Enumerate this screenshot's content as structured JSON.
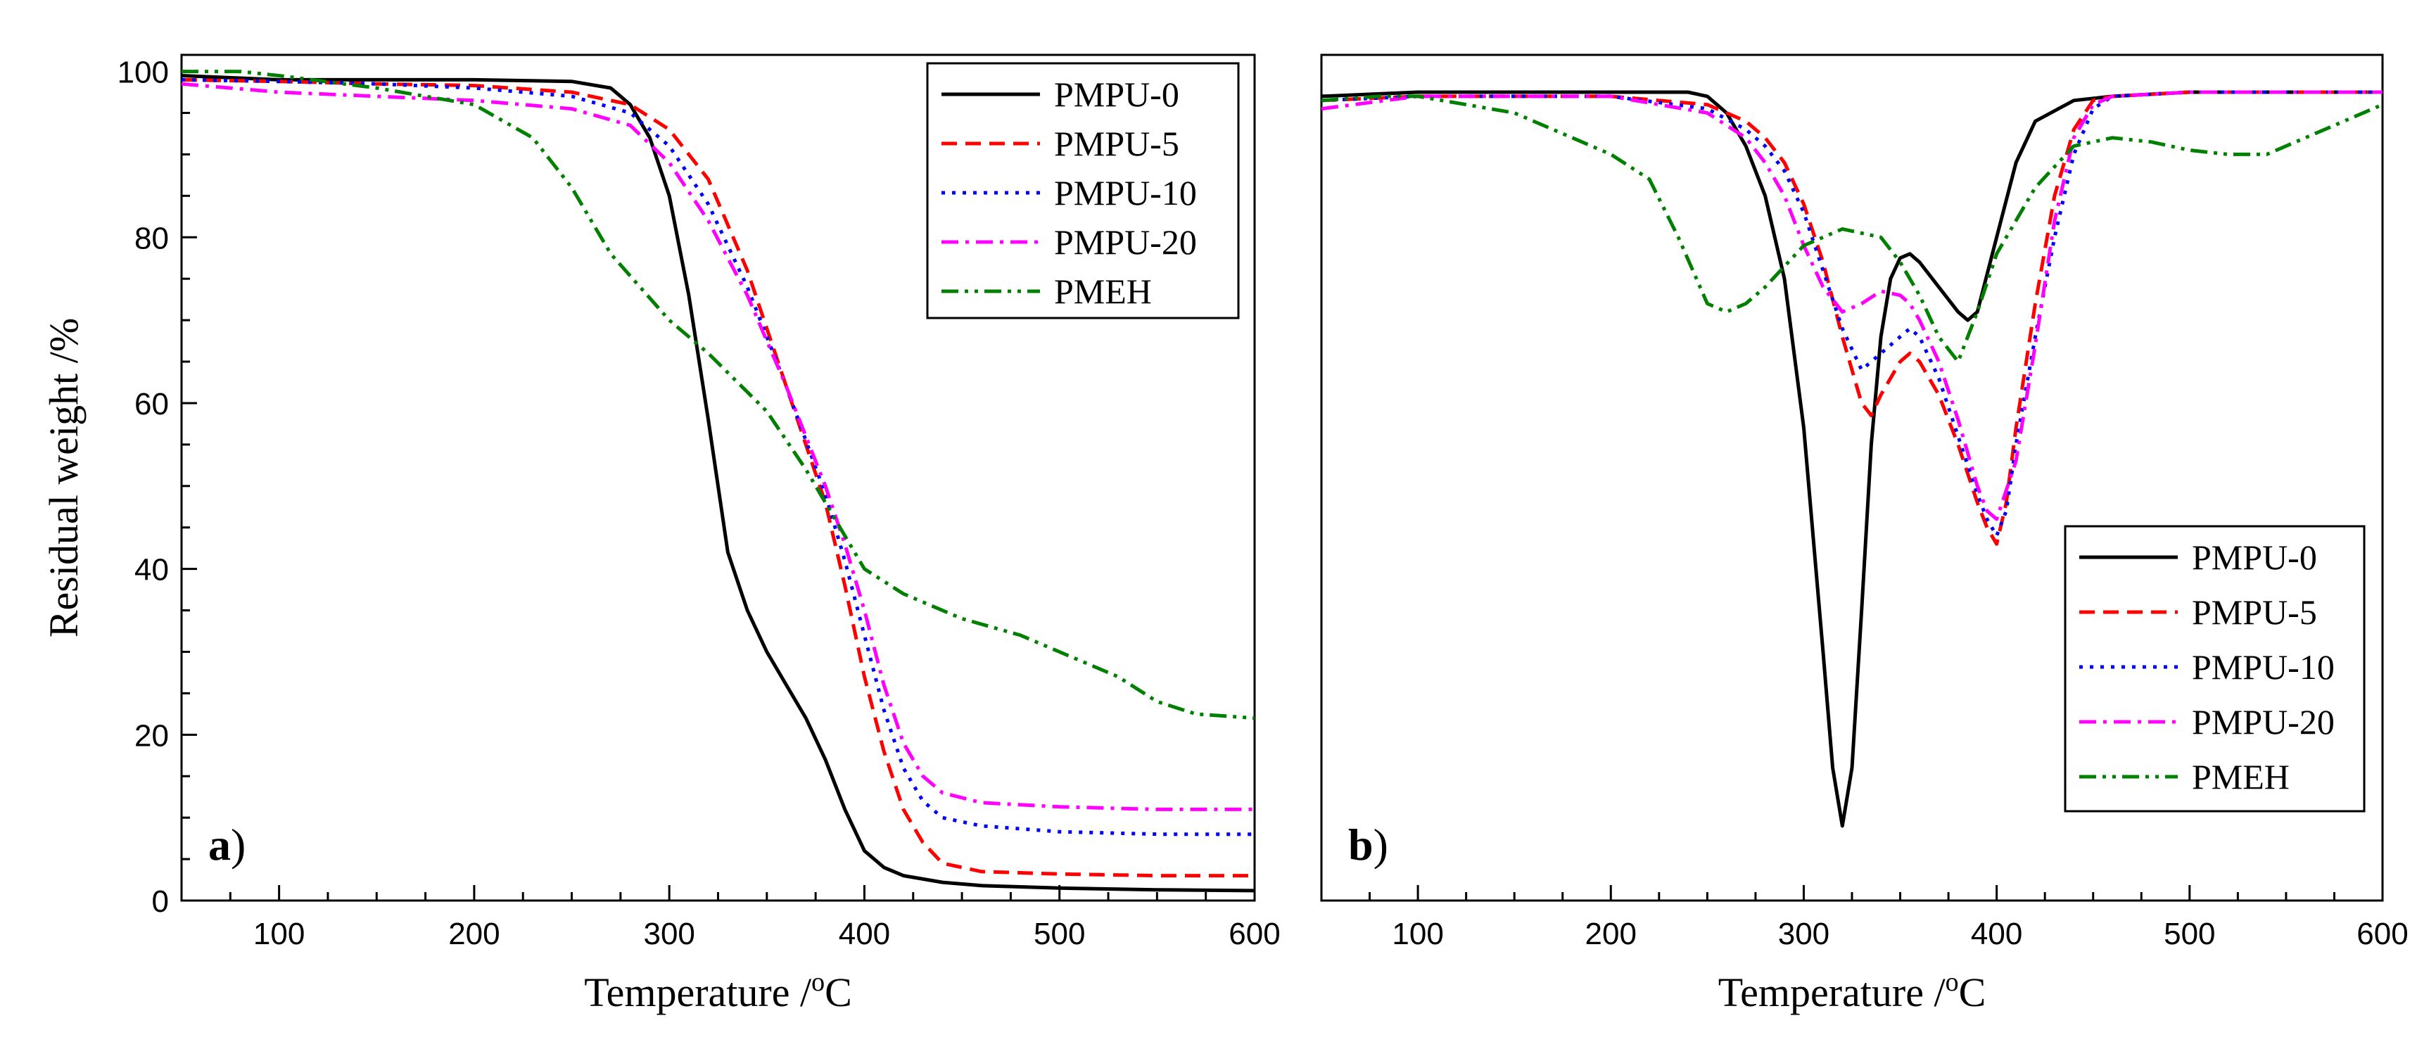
{
  "chart_data": [
    {
      "type": "line",
      "panel_label": "a)",
      "xlabel": "Temperature /",
      "xlabel_sup": "o",
      "xlabel_unit": "C",
      "ylabel": "Residual weight /%",
      "xlim": [
        50,
        600
      ],
      "ylim": [
        0,
        102
      ],
      "xticks": [
        100,
        200,
        300,
        400,
        500,
        600
      ],
      "yticks": [
        0,
        20,
        40,
        60,
        80,
        100
      ],
      "legend_position": "top-right",
      "series": [
        {
          "name": "PMPU-0",
          "color": "#000000",
          "dash": "solid",
          "x": [
            50,
            100,
            150,
            200,
            250,
            270,
            280,
            290,
            300,
            310,
            320,
            330,
            340,
            350,
            360,
            370,
            380,
            390,
            400,
            410,
            420,
            440,
            460,
            500,
            550,
            600
          ],
          "y": [
            99.5,
            99,
            99,
            99,
            98.8,
            98,
            96,
            92,
            85,
            73,
            58,
            42,
            35,
            30,
            26,
            22,
            17,
            11,
            6,
            4,
            3,
            2.2,
            1.8,
            1.5,
            1.3,
            1.2
          ]
        },
        {
          "name": "PMPU-5",
          "color": "#ff0000",
          "dash": "dashed",
          "x": [
            50,
            100,
            150,
            200,
            250,
            280,
            300,
            320,
            340,
            360,
            380,
            390,
            400,
            410,
            420,
            430,
            440,
            460,
            500,
            550,
            600
          ],
          "y": [
            99,
            98.8,
            98.5,
            98.3,
            97.5,
            96,
            93,
            87,
            76,
            62,
            48,
            38,
            27,
            18,
            11,
            7,
            4.5,
            3.5,
            3.2,
            3,
            3
          ]
        },
        {
          "name": "PMPU-10",
          "color": "#0000ff",
          "dash": "dotted",
          "x": [
            50,
            100,
            150,
            200,
            250,
            280,
            300,
            320,
            340,
            360,
            380,
            390,
            400,
            410,
            420,
            430,
            440,
            460,
            500,
            550,
            600
          ],
          "y": [
            99,
            98.8,
            98.5,
            98,
            97,
            95,
            91,
            84,
            74,
            62,
            49,
            41,
            32,
            23,
            16,
            12,
            10,
            9,
            8.3,
            8,
            8
          ]
        },
        {
          "name": "PMPU-20",
          "color": "#ff00ff",
          "dash": "dashdot",
          "x": [
            50,
            100,
            150,
            200,
            250,
            280,
            300,
            320,
            340,
            360,
            380,
            390,
            400,
            410,
            420,
            430,
            440,
            460,
            500,
            550,
            600
          ],
          "y": [
            98.5,
            97.5,
            97,
            96.5,
            95.5,
            93.5,
            89,
            82,
            73,
            62,
            50,
            43,
            35,
            26,
            19,
            15,
            13,
            11.8,
            11.3,
            11,
            11
          ]
        },
        {
          "name": "PMEH",
          "color": "#008000",
          "dash": "dashdotdot",
          "x": [
            50,
            80,
            100,
            150,
            200,
            230,
            250,
            270,
            300,
            320,
            350,
            370,
            390,
            400,
            420,
            450,
            480,
            500,
            530,
            550,
            570,
            600
          ],
          "y": [
            100,
            100,
            99.5,
            98,
            96,
            92,
            86,
            78,
            70,
            66,
            59,
            52,
            44,
            40,
            37,
            34,
            32,
            30,
            27,
            24,
            22.5,
            22
          ]
        }
      ]
    },
    {
      "type": "line",
      "panel_label": "b)",
      "xlabel": "Temperature /",
      "xlabel_sup": "o",
      "xlabel_unit": "C",
      "ylabel": "",
      "xlim": [
        50,
        600
      ],
      "ylim": [
        0,
        102
      ],
      "xticks": [
        100,
        200,
        300,
        400,
        500,
        600
      ],
      "yticks": [],
      "legend_position": "bottom-right",
      "series": [
        {
          "name": "PMPU-0",
          "color": "#000000",
          "dash": "solid",
          "x": [
            50,
            100,
            150,
            200,
            240,
            250,
            260,
            270,
            280,
            290,
            300,
            310,
            315,
            320,
            325,
            330,
            335,
            340,
            345,
            350,
            355,
            360,
            370,
            380,
            385,
            390,
            400,
            410,
            420,
            440,
            460,
            500,
            550,
            600
          ],
          "y": [
            97,
            97.5,
            97.5,
            97.5,
            97.5,
            97,
            95,
            91,
            85,
            75,
            57,
            30,
            16,
            9,
            16,
            35,
            55,
            68,
            75,
            77.5,
            78,
            77,
            74,
            71,
            70,
            71,
            80,
            89,
            94,
            96.5,
            97,
            97.5,
            97.5,
            97.5
          ]
        },
        {
          "name": "PMPU-5",
          "color": "#ff0000",
          "dash": "dashed",
          "x": [
            50,
            100,
            150,
            200,
            250,
            270,
            280,
            290,
            300,
            310,
            320,
            330,
            335,
            340,
            350,
            355,
            360,
            370,
            380,
            390,
            395,
            400,
            405,
            410,
            420,
            430,
            440,
            450,
            460,
            500,
            550,
            600
          ],
          "y": [
            96.5,
            97,
            97,
            97,
            96,
            94,
            92,
            89,
            84,
            77,
            68,
            60,
            58.5,
            61,
            65,
            66,
            65,
            61,
            55,
            48,
            45,
            43,
            48,
            57,
            72,
            85,
            93,
            96.5,
            97,
            97.5,
            97.5,
            97.5
          ]
        },
        {
          "name": "PMPU-10",
          "color": "#0000ff",
          "dash": "dotted",
          "x": [
            50,
            100,
            150,
            200,
            250,
            270,
            280,
            290,
            300,
            310,
            320,
            330,
            340,
            350,
            355,
            360,
            370,
            380,
            390,
            395,
            400,
            405,
            410,
            420,
            430,
            440,
            450,
            460,
            500,
            550,
            600
          ],
          "y": [
            96.5,
            97,
            97,
            97,
            95.5,
            93,
            91,
            88,
            83,
            76,
            69,
            64,
            66,
            68,
            69,
            68,
            63,
            56,
            49,
            46,
            44,
            47,
            55,
            68,
            80,
            90,
            95.5,
            97,
            97.5,
            97.5,
            97.5
          ]
        },
        {
          "name": "PMPU-20",
          "color": "#ff00ff",
          "dash": "dashdot",
          "x": [
            50,
            100,
            150,
            200,
            250,
            270,
            280,
            290,
            300,
            310,
            320,
            330,
            340,
            350,
            355,
            360,
            370,
            380,
            390,
            395,
            400,
            410,
            420,
            430,
            440,
            450,
            460,
            500,
            550,
            600
          ],
          "y": [
            95.5,
            97,
            97,
            97,
            95,
            92,
            89,
            85,
            79,
            74,
            71,
            72,
            73.5,
            73,
            72,
            70,
            65,
            58,
            50,
            47,
            46,
            53,
            67,
            82,
            92,
            96,
            97,
            97.5,
            97.5,
            97.5
          ]
        },
        {
          "name": "PMEH",
          "color": "#008000",
          "dash": "dashdotdot",
          "x": [
            50,
            80,
            100,
            150,
            200,
            220,
            235,
            250,
            260,
            270,
            280,
            300,
            320,
            340,
            350,
            360,
            370,
            380,
            390,
            400,
            420,
            440,
            460,
            480,
            500,
            520,
            540,
            560,
            580,
            600
          ],
          "y": [
            96.5,
            97,
            97,
            95,
            90,
            87,
            80,
            72,
            71,
            72,
            74,
            79,
            81,
            80,
            77,
            73,
            68,
            65,
            71,
            78,
            86,
            91,
            92,
            91.5,
            90.5,
            90,
            90,
            92,
            94,
            96
          ]
        }
      ]
    }
  ]
}
